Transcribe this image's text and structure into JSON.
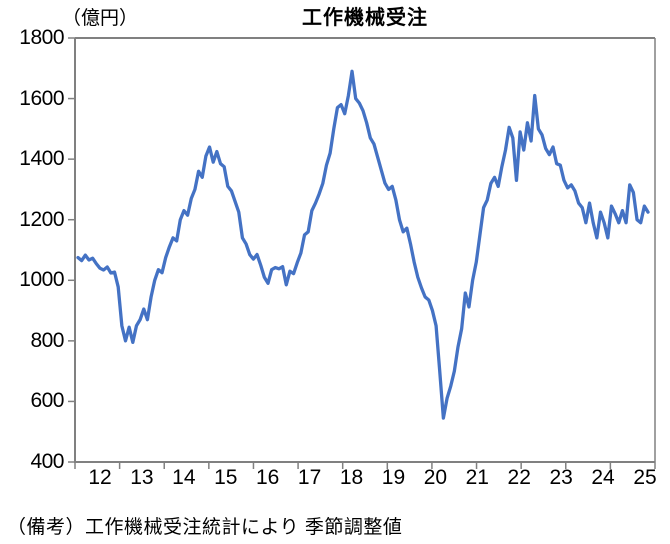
{
  "chart": {
    "title": "工作機械受注",
    "unit_label": "（億円）",
    "source_note": "（備考）工作機械受注統計により 季節調整値"
  },
  "chart_data": {
    "type": "line",
    "title": "工作機械受注",
    "ylabel": "（億円）",
    "note": "（備考）工作機械受注統計により 季節調整値",
    "frequency": "monthly",
    "x_start": "2012-01",
    "x_end": "2025-01",
    "ylim": [
      400,
      1800
    ],
    "grid": false,
    "legend": "none",
    "line_color": "#4472C4",
    "axis_color": "#808080",
    "ytick_labels": [
      "1800",
      "1600",
      "1400",
      "1200",
      "1000",
      "800",
      "600",
      "400"
    ],
    "yticks": [
      1800,
      1600,
      1400,
      1200,
      1000,
      800,
      600,
      400
    ],
    "xtick_labels": [
      "12",
      "13",
      "14",
      "15",
      "16",
      "17",
      "18",
      "19",
      "20",
      "21",
      "22",
      "23",
      "24",
      "25"
    ],
    "values": [
      1075,
      1065,
      1083,
      1067,
      1073,
      1055,
      1040,
      1034,
      1044,
      1024,
      1027,
      978,
      850,
      800,
      845,
      795,
      850,
      870,
      905,
      870,
      945,
      1000,
      1035,
      1025,
      1075,
      1110,
      1140,
      1130,
      1200,
      1230,
      1215,
      1270,
      1300,
      1360,
      1340,
      1410,
      1440,
      1390,
      1425,
      1385,
      1375,
      1310,
      1295,
      1260,
      1225,
      1140,
      1120,
      1085,
      1070,
      1085,
      1050,
      1010,
      990,
      1035,
      1042,
      1038,
      1045,
      985,
      1030,
      1022,
      1058,
      1090,
      1150,
      1160,
      1230,
      1255,
      1285,
      1320,
      1380,
      1420,
      1500,
      1570,
      1580,
      1550,
      1610,
      1690,
      1600,
      1585,
      1560,
      1520,
      1470,
      1450,
      1407,
      1364,
      1321,
      1300,
      1310,
      1265,
      1199,
      1160,
      1172,
      1120,
      1060,
      1010,
      975,
      945,
      935,
      900,
      850,
      700,
      545,
      610,
      650,
      700,
      780,
      840,
      958,
      912,
      1000,
      1060,
      1150,
      1240,
      1265,
      1320,
      1340,
      1310,
      1375,
      1430,
      1505,
      1470,
      1330,
      1490,
      1430,
      1520,
      1460,
      1610,
      1500,
      1480,
      1435,
      1415,
      1440,
      1385,
      1380,
      1330,
      1305,
      1315,
      1295,
      1255,
      1240,
      1190,
      1255,
      1190,
      1140,
      1225,
      1190,
      1140,
      1245,
      1220,
      1190,
      1230,
      1190,
      1315,
      1290,
      1200,
      1190,
      1245,
      1225
    ]
  }
}
